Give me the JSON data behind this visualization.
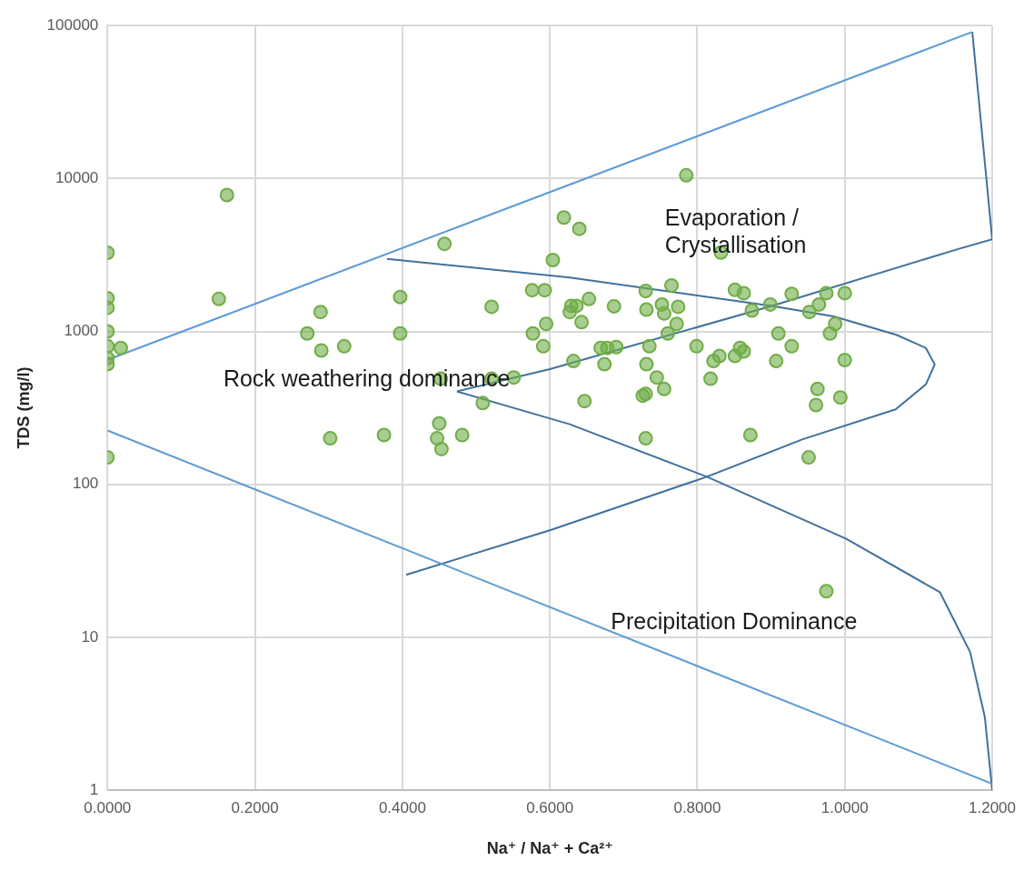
{
  "chart_data": {
    "type": "scatter",
    "xlabel": "Na⁺ / Na⁺ + Ca²⁺",
    "ylabel": "TDS (mg/l)",
    "xlim": [
      0,
      1.2
    ],
    "xticks": [
      {
        "value": 0,
        "label": "0.0000"
      },
      {
        "value": 0.2,
        "label": "0.2000"
      },
      {
        "value": 0.4,
        "label": "0.4000"
      },
      {
        "value": 0.6,
        "label": "0.6000"
      },
      {
        "value": 0.8,
        "label": "0.8000"
      },
      {
        "value": 1.0,
        "label": "1.0000"
      },
      {
        "value": 1.2,
        "label": "1.2000"
      }
    ],
    "ylim": [
      1,
      100000
    ],
    "yticks": [
      1,
      10,
      100,
      1000,
      10000,
      100000
    ],
    "log": "y",
    "grid": true,
    "legend": false,
    "marker": "circle",
    "series": [
      {
        "color": "#70ad47",
        "x": [
          0,
          0,
          0,
          0,
          0,
          0,
          0,
          0,
          0.018,
          0.162,
          0.151,
          0.289,
          0.271,
          0.29,
          0.321,
          0.397,
          0.397,
          0.457,
          0.302,
          0.375,
          0.452,
          0.45,
          0.447,
          0.453,
          0.481,
          0.509,
          0.521,
          0.521,
          0.551,
          0.576,
          0.593,
          0.577,
          0.595,
          0.591,
          0.604,
          0.619,
          0.64,
          0.629,
          0.627,
          0.636,
          0.643,
          0.653,
          0.687,
          0.632,
          0.674,
          0.669,
          0.678,
          0.69,
          0.647,
          0.73,
          0.765,
          0.731,
          0.752,
          0.755,
          0.774,
          0.772,
          0.76,
          0.735,
          0.731,
          0.745,
          0.755,
          0.726,
          0.73,
          0.73,
          0.785,
          0.832,
          0.799,
          0.822,
          0.83,
          0.818,
          0.851,
          0.863,
          0.851,
          0.858,
          0.863,
          0.874,
          0.899,
          0.928,
          0.952,
          0.965,
          0.975,
          1.0,
          0.91,
          0.928,
          0.98,
          0.987,
          0.907,
          1.0,
          0.963,
          0.961,
          0.994,
          0.872,
          0.951,
          0.975
        ],
        "values": [
          3270,
          1650,
          1430,
          1000,
          800,
          670,
          610,
          150,
          780,
          7800,
          1630,
          1340,
          970,
          750,
          800,
          1680,
          970,
          3740,
          200,
          210,
          490,
          250,
          200,
          170,
          210,
          340,
          1450,
          490,
          500,
          1860,
          1860,
          970,
          1120,
          800,
          2930,
          5560,
          4690,
          1470,
          1340,
          1470,
          1150,
          1630,
          1460,
          640,
          610,
          780,
          780,
          790,
          350,
          1840,
          2000,
          1390,
          1500,
          1310,
          1450,
          1120,
          970,
          800,
          610,
          500,
          420,
          380,
          390,
          200,
          10500,
          3280,
          800,
          640,
          690,
          490,
          1870,
          1780,
          690,
          780,
          740,
          1370,
          1500,
          1760,
          1340,
          1500,
          1780,
          1780,
          970,
          800,
          970,
          1120,
          640,
          650,
          420,
          330,
          370,
          210,
          150,
          20
        ]
      },
      {
        "type": "line",
        "color": "#5b9bd5",
        "marker": "none",
        "x": [
          0,
          1.173
        ],
        "values": [
          652,
          91000
        ]
      },
      {
        "type": "line",
        "color": "#5b9bd5",
        "marker": "none",
        "x": [
          0,
          1.2
        ],
        "values": [
          225,
          1.1
        ]
      },
      {
        "type": "line",
        "color": "#41719c",
        "marker": "none",
        "x": [
          0.474,
          0.6,
          0.901,
          1.154,
          1.2,
          1.173
        ],
        "values": [
          405,
          566,
          1468,
          3460,
          4000,
          91000
        ]
      },
      {
        "type": "line",
        "color": "#41719c",
        "marker": "none",
        "x": [
          0.474,
          0.627,
          0.813,
          1.002,
          1.129,
          1.17,
          1.19,
          1.2
        ],
        "values": [
          405,
          247,
          112,
          44,
          19.7,
          8,
          3,
          1
        ]
      },
      {
        "type": "line",
        "color": "#41719c",
        "marker": "none",
        "x": [
          0.379,
          0.627,
          0.901,
          0.985,
          1.07,
          1.11,
          1.122,
          1.11,
          1.069,
          0.943,
          0.813,
          0.6,
          0.405
        ],
        "values": [
          2985,
          2255,
          1468,
          1253,
          950,
          780,
          608,
          450,
          309,
          197,
          112,
          50,
          25.6
        ]
      }
    ],
    "annotations": [
      "Evaporation / Crystallisation",
      "Rock weathering dominance",
      "Precipitation Dominance"
    ]
  }
}
